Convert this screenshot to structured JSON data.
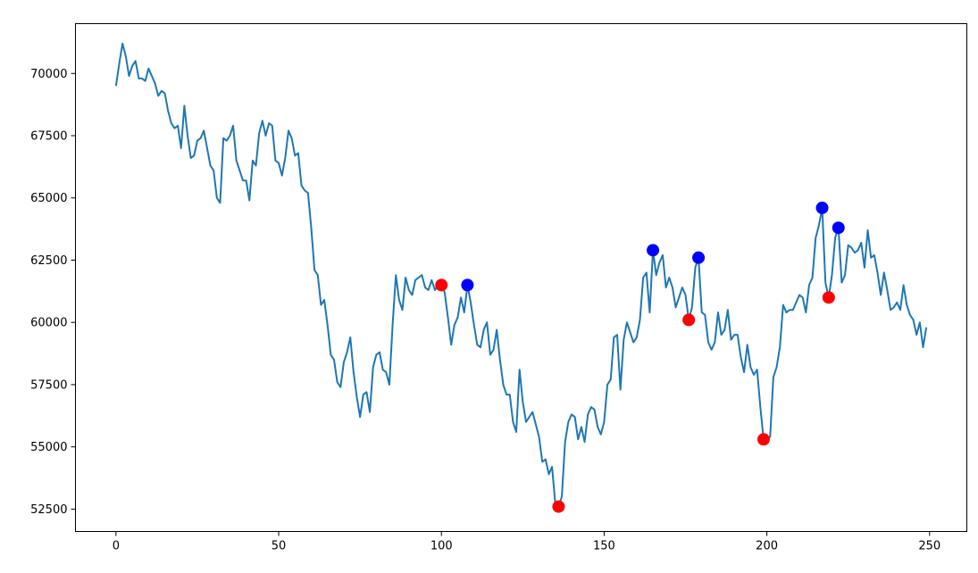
{
  "chart_data": {
    "type": "line",
    "title": "",
    "xlabel": "",
    "ylabel": "",
    "xlim": [
      -12.45,
      261.45
    ],
    "ylim": [
      51600,
      72000
    ],
    "x_ticks": [
      0,
      50,
      100,
      150,
      200,
      250
    ],
    "x_tick_labels": [
      "0",
      "50",
      "100",
      "150",
      "200",
      "250"
    ],
    "y_ticks": [
      52500,
      55000,
      57500,
      60000,
      62500,
      65000,
      67500,
      70000
    ],
    "y_tick_labels": [
      "52500",
      "55000",
      "57500",
      "60000",
      "62500",
      "65000",
      "67500",
      "70000"
    ],
    "grid": false,
    "series": [
      {
        "type": "line",
        "color": "#1f77b4",
        "x_start": 0,
        "values": [
          69500,
          70400,
          71200,
          70700,
          69900,
          70300,
          70500,
          69800,
          69800,
          69700,
          70200,
          69900,
          69600,
          69100,
          69300,
          69200,
          68500,
          68000,
          67800,
          67900,
          67000,
          68700,
          67500,
          66600,
          66700,
          67300,
          67400,
          67700,
          67000,
          66300,
          66100,
          65000,
          64800,
          67400,
          67300,
          67500,
          67900,
          66500,
          66100,
          65700,
          65700,
          64900,
          66500,
          66300,
          67600,
          68100,
          67500,
          68000,
          67900,
          66500,
          66400,
          65900,
          66600,
          67700,
          67400,
          66700,
          66800,
          65500,
          65300,
          65200,
          63800,
          62100,
          61900,
          60700,
          60900,
          59900,
          58700,
          58500,
          57600,
          57400,
          58400,
          58800,
          59400,
          58000,
          57000,
          56200,
          57100,
          57200,
          56400,
          58200,
          58700,
          58800,
          58100,
          58000,
          57500,
          59900,
          61900,
          60900,
          60500,
          61800,
          61300,
          61100,
          61700,
          61800,
          61900,
          61400,
          61300,
          61700,
          61300,
          61500,
          61500,
          61200,
          60200,
          59100,
          59900,
          60200,
          61000,
          60400,
          61500,
          60800,
          59900,
          59100,
          59000,
          59700,
          60000,
          58700,
          58900,
          59700,
          58500,
          57500,
          57100,
          57100,
          56000,
          55600,
          58100,
          56800,
          56000,
          56200,
          56400,
          55900,
          55400,
          54400,
          54500,
          53900,
          54200,
          52700,
          52600,
          53000,
          55200,
          56000,
          56300,
          56200,
          55300,
          55800,
          55200,
          56300,
          56600,
          56500,
          55800,
          55500,
          56000,
          57500,
          57700,
          59400,
          59500,
          57300,
          59300,
          60000,
          59600,
          59200,
          59400,
          60100,
          61800,
          62000,
          60400,
          62900,
          61900,
          62400,
          62700,
          61400,
          61800,
          61400,
          60600,
          61000,
          61400,
          61100,
          60100,
          60600,
          62200,
          62600,
          60400,
          60300,
          59200,
          58900,
          59200,
          60400,
          59500,
          59700,
          60500,
          59300,
          59500,
          59500,
          58600,
          58000,
          59100,
          58200,
          57900,
          58100,
          56600,
          55300,
          55300,
          55400,
          57800,
          58200,
          59000,
          60700,
          60400,
          60500,
          60500,
          60800,
          61100,
          61000,
          60400,
          61500,
          61800,
          63400,
          63900,
          64600,
          61600,
          61000,
          61900,
          63400,
          63800,
          61600,
          61900,
          63100,
          63000,
          62800,
          62900,
          63200,
          62200,
          63700,
          62600,
          62700,
          62000,
          61100,
          62000,
          61300,
          60500,
          60600,
          60800,
          60500,
          61500,
          60700,
          60300,
          60100,
          59500,
          60000,
          59000,
          59800
        ]
      }
    ],
    "markers": [
      {
        "name": "red",
        "color": "#ff0000",
        "points": [
          [
            100,
            61500
          ],
          [
            136,
            52600
          ],
          [
            176,
            60100
          ],
          [
            199,
            55300
          ],
          [
            219,
            61000
          ]
        ]
      },
      {
        "name": "blue",
        "color": "#0000ff",
        "points": [
          [
            108,
            61500
          ],
          [
            165,
            62900
          ],
          [
            179,
            62600
          ],
          [
            217,
            64600
          ],
          [
            222,
            63800
          ]
        ]
      }
    ]
  }
}
